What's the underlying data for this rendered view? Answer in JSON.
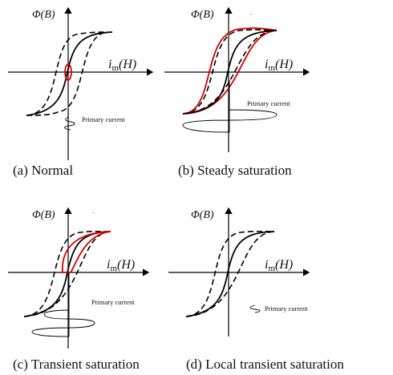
{
  "panels": [
    {
      "caption": "(a) Normal",
      "y_axis_label": "Φ(B)",
      "x_axis_label": "i",
      "x_axis_sub": "m",
      "x_axis_paren": "(H)",
      "note": "Primary current"
    },
    {
      "caption": "(b) Steady saturation",
      "y_axis_label": "Φ(B)",
      "x_axis_label": "i",
      "x_axis_sub": "m",
      "x_axis_paren": "(H)",
      "note": "Primary current"
    },
    {
      "caption": "(c) Transient saturation",
      "y_axis_label": "Φ(B)",
      "x_axis_label": "i",
      "x_axis_sub": "m",
      "x_axis_paren": "(H)",
      "note": "Primary current"
    },
    {
      "caption": "(d) Local transient saturation",
      "y_axis_label": "Φ(B)",
      "x_axis_label": "i",
      "x_axis_sub": "m",
      "x_axis_paren": "(H)",
      "note": "Primary current"
    }
  ],
  "colors": {
    "highlight": "#d40000",
    "line": "#000000"
  }
}
